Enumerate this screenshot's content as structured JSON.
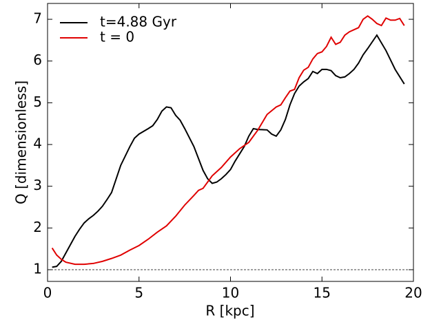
{
  "chart_data": {
    "type": "line",
    "xlabel": "R [kpc]",
    "ylabel": "Q [dimensionless]",
    "xlim": [
      0,
      20
    ],
    "ylim": [
      0.72,
      7.38
    ],
    "xticks": [
      0,
      5,
      10,
      15,
      20
    ],
    "yticks": [
      1,
      2,
      3,
      4,
      5,
      6,
      7
    ],
    "hline": 1,
    "legend": "upper left",
    "series": [
      {
        "name": "t=4.88 Gyr",
        "color": "#000000",
        "x": [
          0.25,
          0.5,
          0.75,
          1.0,
          1.25,
          1.5,
          1.75,
          2.0,
          2.25,
          2.5,
          2.75,
          3.0,
          3.25,
          3.5,
          4.0,
          4.5,
          4.75,
          5.0,
          5.5,
          5.75,
          6.0,
          6.25,
          6.5,
          6.75,
          7.0,
          7.25,
          7.5,
          8.0,
          8.5,
          8.75,
          9.0,
          9.25,
          9.5,
          9.75,
          10.0,
          10.25,
          10.75,
          11.0,
          11.25,
          11.5,
          12.0,
          12.25,
          12.5,
          12.75,
          13.0,
          13.25,
          13.5,
          13.75,
          14.0,
          14.25,
          14.5,
          14.75,
          15.0,
          15.25,
          15.5,
          15.75,
          16.0,
          16.25,
          16.5,
          16.75,
          17.0,
          17.25,
          17.5,
          18.0,
          18.5,
          19.0,
          19.5
        ],
        "values": [
          1.06,
          1.08,
          1.2,
          1.4,
          1.6,
          1.8,
          1.97,
          2.12,
          2.22,
          2.3,
          2.4,
          2.52,
          2.68,
          2.85,
          3.5,
          3.95,
          4.15,
          4.25,
          4.38,
          4.45,
          4.6,
          4.8,
          4.9,
          4.88,
          4.7,
          4.58,
          4.38,
          3.95,
          3.38,
          3.18,
          3.07,
          3.1,
          3.18,
          3.28,
          3.4,
          3.6,
          3.95,
          4.2,
          4.38,
          4.36,
          4.35,
          4.25,
          4.2,
          4.35,
          4.6,
          4.95,
          5.22,
          5.4,
          5.5,
          5.58,
          5.75,
          5.7,
          5.8,
          5.8,
          5.77,
          5.65,
          5.6,
          5.62,
          5.7,
          5.8,
          5.95,
          6.15,
          6.3,
          6.62,
          6.25,
          5.8,
          5.45
        ]
      },
      {
        "name": "t = 0",
        "color": "#e00000",
        "x": [
          0.25,
          0.5,
          0.75,
          1.0,
          1.5,
          2.0,
          2.5,
          3.0,
          3.5,
          4.0,
          4.5,
          5.0,
          5.5,
          6.0,
          6.5,
          7.0,
          7.5,
          8.0,
          8.25,
          8.5,
          9.0,
          9.5,
          10.0,
          10.5,
          11.0,
          11.5,
          12.0,
          12.5,
          12.75,
          13.0,
          13.25,
          13.5,
          13.75,
          14.0,
          14.25,
          14.5,
          14.75,
          15.0,
          15.25,
          15.5,
          15.75,
          16.0,
          16.25,
          16.5,
          16.75,
          17.0,
          17.25,
          17.5,
          17.75,
          18.0,
          18.25,
          18.5,
          18.75,
          19.0,
          19.25,
          19.5
        ],
        "values": [
          1.52,
          1.35,
          1.25,
          1.18,
          1.13,
          1.13,
          1.15,
          1.2,
          1.27,
          1.35,
          1.47,
          1.58,
          1.73,
          1.9,
          2.05,
          2.28,
          2.55,
          2.78,
          2.9,
          2.95,
          3.25,
          3.45,
          3.7,
          3.9,
          4.05,
          4.35,
          4.72,
          4.9,
          4.95,
          5.12,
          5.28,
          5.32,
          5.6,
          5.78,
          5.85,
          6.05,
          6.18,
          6.22,
          6.35,
          6.57,
          6.4,
          6.45,
          6.62,
          6.7,
          6.75,
          6.8,
          7.0,
          7.08,
          7.0,
          6.9,
          6.85,
          7.03,
          6.98,
          6.98,
          7.02,
          6.85
        ]
      }
    ]
  }
}
